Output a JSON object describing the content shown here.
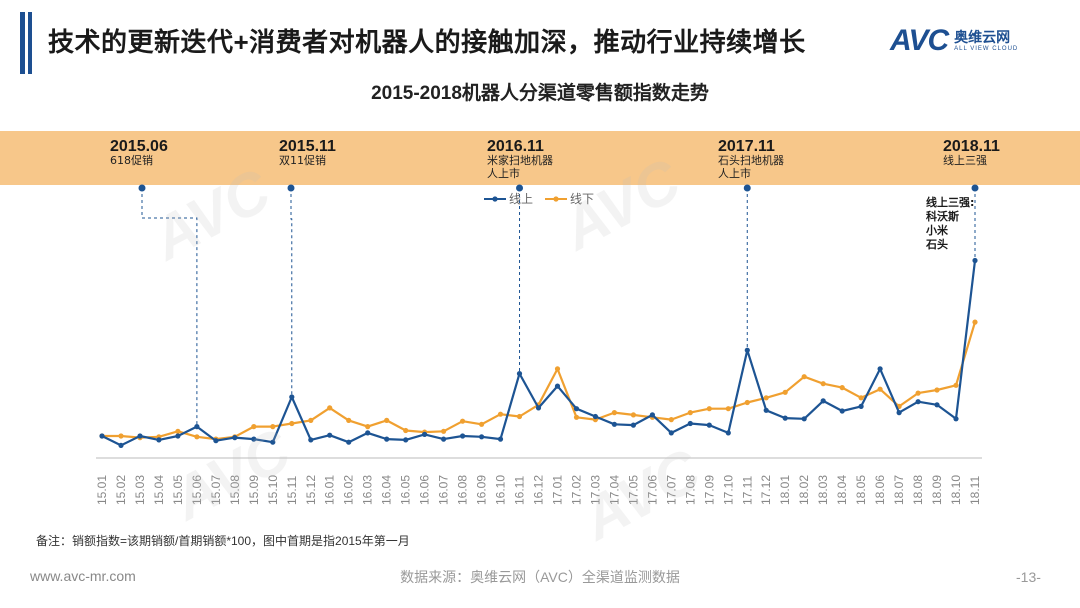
{
  "header": {
    "headline": "技术的更新迭代+消费者对机器人的接触加深，推动行业持续增长",
    "logo_text": "AVC",
    "logo_cn": "奥维云网",
    "logo_en": "ALL VIEW CLOUD"
  },
  "colors": {
    "online": "#1d5493",
    "offline": "#f0a030",
    "band": "#f7c78a",
    "accent": "#1d4f91"
  },
  "chart_data": {
    "type": "line",
    "title": "2015-2018机器人分渠道零售额指数走势",
    "legend_position": "top-center",
    "categories": [
      "15.01",
      "15.02",
      "15.03",
      "15.04",
      "15.05",
      "15.06",
      "15.07",
      "15.08",
      "15.09",
      "15.10",
      "15.11",
      "15.12",
      "16.01",
      "16.02",
      "16.03",
      "16.04",
      "16.05",
      "16.06",
      "16.07",
      "16.08",
      "16.09",
      "16.10",
      "16.11",
      "16.12",
      "17.01",
      "17.02",
      "17.03",
      "17.04",
      "17.05",
      "17.06",
      "17.07",
      "17.08",
      "17.09",
      "17.10",
      "17.11",
      "17.12",
      "18.01",
      "18.02",
      "18.03",
      "18.04",
      "18.05",
      "18.06",
      "18.07",
      "18.08",
      "18.09",
      "18.10",
      "18.11"
    ],
    "series": [
      {
        "name": "线上",
        "color": "#1d5493",
        "values": [
          100,
          88,
          100,
          95,
          100,
          112,
          94,
          98,
          96,
          92,
          150,
          95,
          101,
          92,
          104,
          96,
          95,
          102,
          96,
          100,
          99,
          96,
          180,
          136,
          164,
          135,
          125,
          115,
          114,
          127,
          104,
          116,
          114,
          104,
          210,
          133,
          123,
          122,
          145,
          132,
          138,
          186,
          130,
          144,
          140,
          122,
          325
        ]
      },
      {
        "name": "线下",
        "color": "#f0a030",
        "values": [
          100,
          100,
          98,
          99,
          106,
          99,
          96,
          99,
          112,
          112,
          116,
          120,
          136,
          120,
          112,
          120,
          107,
          105,
          106,
          119,
          115,
          128,
          125,
          140,
          186,
          124,
          121,
          130,
          127,
          124,
          121,
          130,
          135,
          135,
          143,
          149,
          156,
          176,
          167,
          162,
          149,
          160,
          138,
          155,
          159,
          165,
          246
        ]
      }
    ],
    "events": [
      {
        "date": "2015.06",
        "label": "618促销",
        "index": 5
      },
      {
        "date": "2015.11",
        "label": "双11促销",
        "index": 10
      },
      {
        "date": "2016.11",
        "label": "米家扫地机器人上市",
        "index": 22
      },
      {
        "date": "2017.11",
        "label": "石头扫地机器人上市",
        "index": 34
      },
      {
        "date": "2018.11",
        "label": "线上三强",
        "index": 46
      }
    ],
    "annotation": "线上三强:\n科沃斯\n小米\n石头"
  },
  "footer": {
    "note": "备注：销额指数=该期销额/首期销额*100，图中首期是指2015年第一月",
    "url": "www.avc-mr.com",
    "source": "数据来源：奥维云网（AVC）全渠道监测数据",
    "page": "-13-"
  }
}
